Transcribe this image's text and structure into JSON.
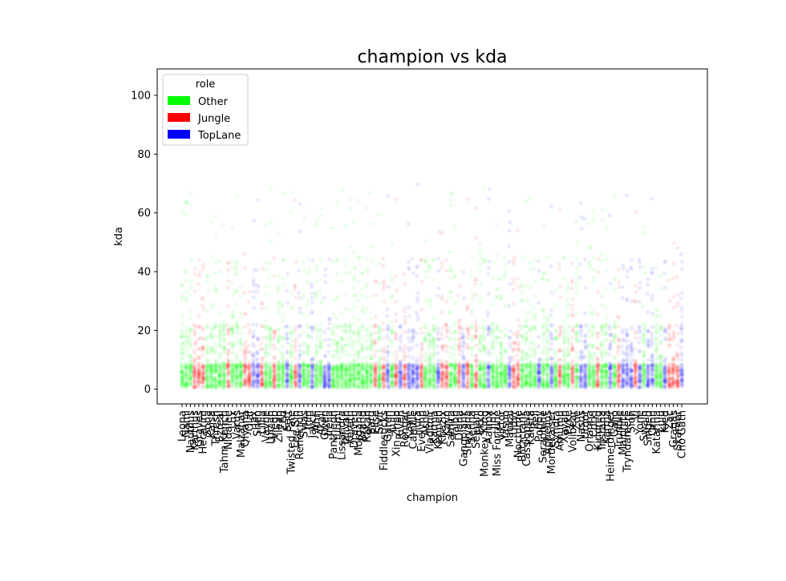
{
  "chart_data": {
    "type": "scatter",
    "title": "champion vs kda",
    "xlabel": "champion",
    "ylabel": "kda",
    "ylim": [
      -5,
      109
    ],
    "y_ticks": [
      0,
      20,
      40,
      60,
      80,
      100
    ],
    "grid": false,
    "legend": {
      "title": "role",
      "placement": "top-left",
      "entries": [
        {
          "label": "Other",
          "color": "#00ff00"
        },
        {
          "label": "Jungle",
          "color": "#ff0000"
        },
        {
          "label": "TopLane",
          "color": "#0000ff"
        }
      ]
    },
    "point_alpha": 0.08,
    "categories": [
      "Leona",
      "Nami",
      "Nautilus",
      "Karthus",
      "Graves",
      "Hecarim",
      "Sona",
      "Kaisa",
      "Thresh",
      "Ezreal",
      "Tahm Kench",
      "Nidalee",
      "Lux",
      "Varus",
      "Malzahar",
      "Qiyana",
      "Olaf",
      "Jax",
      "Shen",
      "Lillia",
      "Vayne",
      "Lucian",
      "Viego",
      "Zilean",
      "Zed",
      "Sett",
      "Twisted Fate",
      "Lee Sin",
      "Renekton",
      "Sylas",
      "Jhin",
      "Jayce",
      "Ahri",
      "Akali",
      "Gwen",
      "Irelia",
      "Pantheon",
      "Yuumi",
      "Lissandra",
      "Taliyah",
      "Xerath",
      "Draven",
      "Morgana",
      "Brand",
      "Rakan",
      "Bard",
      "Elise",
      "Sivir",
      "Fiddlesticks",
      "Garen",
      "Lulu",
      "Xin Zhao",
      "Riven",
      "Rengar",
      "Kayle",
      "Camille",
      "Fiora",
      "Evelynn",
      "Ashe",
      "Vladimir",
      "Karma",
      "Kennen",
      "Khazix",
      "Kayn",
      "Samira",
      "Talon",
      "Diana",
      "Gangplank",
      "Shyvana",
      "Senna",
      "Sejuani",
      "Ekko",
      "Monkey King",
      "Aatrox",
      "Jinx",
      "Miss Fortune",
      "Viktor",
      "Yasuo",
      "Maokai",
      "Udyr",
      "Nocturne",
      "Blitzcrank",
      "Cassiopeia",
      "Kalista",
      "Rell",
      "Poppy",
      "Seraphine",
      "Aphelios",
      "Mordekaiser",
      "Syndra",
      "Amumu",
      "Xayah",
      "Pyke",
      "Volibear",
      "Zoe",
      "Nasus",
      "Urgot",
      "Orianna",
      "Corki",
      "Kindred",
      "Tristana",
      "Karma",
      "Heimerdinger",
      "Galio",
      "Trundle",
      "Malphite",
      "Tryndamere",
      "Sion",
      "Vi",
      "Yone",
      "Swain",
      "Singed",
      "Ornn",
      "Katarina",
      "Lulu",
      "Kled",
      "Zac",
      "Gragas",
      "Skarner",
      "Cho'Gath"
    ],
    "category_roles": [
      "Other",
      "Other",
      "Other",
      "Jungle",
      "Jungle",
      "Jungle",
      "Other",
      "Other",
      "Other",
      "Other",
      "Other",
      "Jungle",
      "Other",
      "Other",
      "Other",
      "Jungle",
      "Jungle",
      "TopLane",
      "TopLane",
      "Jungle",
      "Other",
      "Other",
      "Jungle",
      "Other",
      "Other",
      "TopLane",
      "Other",
      "Jungle",
      "TopLane",
      "Other",
      "Other",
      "TopLane",
      "Other",
      "Other",
      "TopLane",
      "TopLane",
      "Other",
      "Other",
      "Other",
      "Other",
      "Other",
      "Other",
      "Other",
      "Other",
      "Other",
      "Other",
      "Jungle",
      "Other",
      "Jungle",
      "TopLane",
      "Other",
      "Jungle",
      "TopLane",
      "Jungle",
      "TopLane",
      "TopLane",
      "TopLane",
      "Jungle",
      "Other",
      "Other",
      "Other",
      "TopLane",
      "Jungle",
      "Jungle",
      "Other",
      "Other",
      "Jungle",
      "TopLane",
      "Jungle",
      "Other",
      "Jungle",
      "Other",
      "Other",
      "TopLane",
      "Other",
      "Other",
      "Other",
      "Other",
      "TopLane",
      "Jungle",
      "Jungle",
      "Other",
      "Other",
      "Other",
      "Other",
      "TopLane",
      "Other",
      "Other",
      "TopLane",
      "Other",
      "Jungle",
      "Other",
      "Other",
      "Jungle",
      "Other",
      "TopLane",
      "TopLane",
      "Other",
      "Other",
      "Jungle",
      "Other",
      "Other",
      "TopLane",
      "Other",
      "Jungle",
      "TopLane",
      "TopLane",
      "TopLane",
      "Jungle",
      "TopLane",
      "Other",
      "TopLane",
      "TopLane",
      "Other",
      "Other",
      "TopLane",
      "Jungle",
      "Jungle",
      "Jungle",
      "TopLane"
    ]
  }
}
